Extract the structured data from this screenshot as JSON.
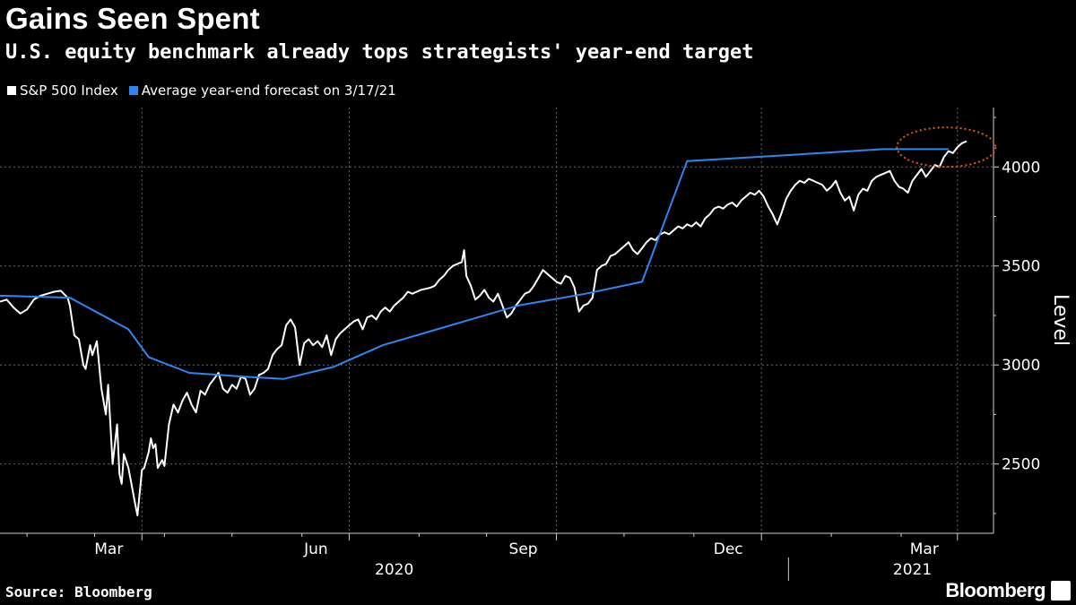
{
  "chart_data": {
    "type": "line",
    "title": "Gains Seen Spent",
    "subtitle": "U.S. equity benchmark already tops strategists' year-end target",
    "ylabel": "Level",
    "xlabel": "",
    "ylim": [
      2150,
      4300
    ],
    "yticks": [
      2500,
      3000,
      3500,
      4000
    ],
    "x_domain_days": [
      0,
      441
    ],
    "x_month_ticks": [
      {
        "day": 63,
        "label": "Mar"
      },
      {
        "day": 155,
        "label": "Jun"
      },
      {
        "day": 247,
        "label": "Sep"
      },
      {
        "day": 338,
        "label": "Dec"
      },
      {
        "day": 425,
        "label": "Mar"
      }
    ],
    "x_minor_ticks": [
      12,
      42,
      73,
      103,
      134,
      186,
      216,
      277,
      308,
      369,
      400
    ],
    "year_labels": [
      {
        "day": 175,
        "label": "2020"
      },
      {
        "day": 405,
        "label": "2021"
      }
    ],
    "year_divider_day": 350,
    "series": [
      {
        "name": "S&P 500 Index",
        "color": "#ffffff",
        "values_by_day": [
          [
            0,
            3320
          ],
          [
            3,
            3330
          ],
          [
            6,
            3290
          ],
          [
            9,
            3260
          ],
          [
            12,
            3280
          ],
          [
            15,
            3330
          ],
          [
            18,
            3350
          ],
          [
            21,
            3360
          ],
          [
            24,
            3370
          ],
          [
            27,
            3375
          ],
          [
            30,
            3340
          ],
          [
            31,
            3300
          ],
          [
            33,
            3150
          ],
          [
            35,
            3130
          ],
          [
            37,
            3000
          ],
          [
            38,
            2980
          ],
          [
            40,
            3100
          ],
          [
            41,
            3050
          ],
          [
            43,
            3120
          ],
          [
            45,
            2880
          ],
          [
            47,
            2750
          ],
          [
            48,
            2900
          ],
          [
            50,
            2500
          ],
          [
            51,
            2600
          ],
          [
            52,
            2700
          ],
          [
            53,
            2450
          ],
          [
            54,
            2400
          ],
          [
            55,
            2550
          ],
          [
            57,
            2480
          ],
          [
            58,
            2420
          ],
          [
            60,
            2300
          ],
          [
            61,
            2240
          ],
          [
            63,
            2470
          ],
          [
            64,
            2480
          ],
          [
            66,
            2560
          ],
          [
            67,
            2630
          ],
          [
            68,
            2580
          ],
          [
            69,
            2600
          ],
          [
            70,
            2480
          ],
          [
            72,
            2520
          ],
          [
            73,
            2490
          ],
          [
            75,
            2700
          ],
          [
            77,
            2800
          ],
          [
            79,
            2760
          ],
          [
            81,
            2820
          ],
          [
            83,
            2860
          ],
          [
            85,
            2800
          ],
          [
            87,
            2760
          ],
          [
            89,
            2870
          ],
          [
            91,
            2850
          ],
          [
            93,
            2900
          ],
          [
            95,
            2930
          ],
          [
            97,
            2960
          ],
          [
            99,
            2880
          ],
          [
            101,
            2860
          ],
          [
            103,
            2900
          ],
          [
            105,
            2880
          ],
          [
            107,
            2940
          ],
          [
            109,
            2930
          ],
          [
            111,
            2850
          ],
          [
            113,
            2880
          ],
          [
            115,
            2950
          ],
          [
            117,
            2960
          ],
          [
            119,
            2980
          ],
          [
            121,
            3050
          ],
          [
            123,
            3080
          ],
          [
            125,
            3100
          ],
          [
            127,
            3200
          ],
          [
            129,
            3230
          ],
          [
            131,
            3190
          ],
          [
            133,
            3000
          ],
          [
            135,
            3110
          ],
          [
            137,
            3130
          ],
          [
            139,
            3100
          ],
          [
            141,
            3120
          ],
          [
            143,
            3090
          ],
          [
            145,
            3150
          ],
          [
            147,
            3050
          ],
          [
            149,
            3130
          ],
          [
            151,
            3160
          ],
          [
            153,
            3180
          ],
          [
            155,
            3200
          ],
          [
            157,
            3220
          ],
          [
            159,
            3230
          ],
          [
            161,
            3180
          ],
          [
            163,
            3240
          ],
          [
            165,
            3250
          ],
          [
            167,
            3230
          ],
          [
            169,
            3270
          ],
          [
            171,
            3290
          ],
          [
            173,
            3270
          ],
          [
            175,
            3300
          ],
          [
            177,
            3320
          ],
          [
            179,
            3340
          ],
          [
            181,
            3370
          ],
          [
            183,
            3360
          ],
          [
            185,
            3370
          ],
          [
            187,
            3380
          ],
          [
            189,
            3385
          ],
          [
            191,
            3390
          ],
          [
            193,
            3400
          ],
          [
            195,
            3430
          ],
          [
            197,
            3450
          ],
          [
            199,
            3480
          ],
          [
            201,
            3500
          ],
          [
            203,
            3510
          ],
          [
            205,
            3520
          ],
          [
            206,
            3580
          ],
          [
            207,
            3450
          ],
          [
            209,
            3400
          ],
          [
            211,
            3330
          ],
          [
            213,
            3350
          ],
          [
            215,
            3380
          ],
          [
            217,
            3340
          ],
          [
            219,
            3320
          ],
          [
            221,
            3360
          ],
          [
            223,
            3300
          ],
          [
            225,
            3240
          ],
          [
            227,
            3260
          ],
          [
            229,
            3300
          ],
          [
            231,
            3330
          ],
          [
            233,
            3360
          ],
          [
            235,
            3370
          ],
          [
            237,
            3400
          ],
          [
            239,
            3440
          ],
          [
            241,
            3480
          ],
          [
            243,
            3460
          ],
          [
            245,
            3440
          ],
          [
            247,
            3420
          ],
          [
            249,
            3410
          ],
          [
            251,
            3450
          ],
          [
            253,
            3440
          ],
          [
            255,
            3390
          ],
          [
            257,
            3270
          ],
          [
            259,
            3300
          ],
          [
            261,
            3310
          ],
          [
            263,
            3340
          ],
          [
            265,
            3480
          ],
          [
            267,
            3500
          ],
          [
            269,
            3510
          ],
          [
            271,
            3550
          ],
          [
            273,
            3560
          ],
          [
            275,
            3580
          ],
          [
            277,
            3600
          ],
          [
            279,
            3620
          ],
          [
            281,
            3580
          ],
          [
            283,
            3560
          ],
          [
            285,
            3590
          ],
          [
            287,
            3620
          ],
          [
            289,
            3640
          ],
          [
            291,
            3630
          ],
          [
            293,
            3660
          ],
          [
            295,
            3670
          ],
          [
            297,
            3660
          ],
          [
            299,
            3680
          ],
          [
            301,
            3700
          ],
          [
            303,
            3690
          ],
          [
            305,
            3710
          ],
          [
            307,
            3700
          ],
          [
            309,
            3720
          ],
          [
            311,
            3700
          ],
          [
            313,
            3740
          ],
          [
            315,
            3760
          ],
          [
            317,
            3790
          ],
          [
            319,
            3800
          ],
          [
            321,
            3790
          ],
          [
            323,
            3810
          ],
          [
            325,
            3820
          ],
          [
            327,
            3800
          ],
          [
            329,
            3830
          ],
          [
            331,
            3850
          ],
          [
            333,
            3870
          ],
          [
            335,
            3860
          ],
          [
            337,
            3880
          ],
          [
            339,
            3850
          ],
          [
            341,
            3800
          ],
          [
            343,
            3760
          ],
          [
            345,
            3710
          ],
          [
            347,
            3770
          ],
          [
            349,
            3840
          ],
          [
            351,
            3880
          ],
          [
            353,
            3910
          ],
          [
            355,
            3930
          ],
          [
            357,
            3920
          ],
          [
            359,
            3940
          ],
          [
            361,
            3930
          ],
          [
            363,
            3920
          ],
          [
            365,
            3910
          ],
          [
            367,
            3880
          ],
          [
            369,
            3900
          ],
          [
            371,
            3930
          ],
          [
            373,
            3870
          ],
          [
            375,
            3830
          ],
          [
            377,
            3850
          ],
          [
            379,
            3780
          ],
          [
            381,
            3860
          ],
          [
            383,
            3890
          ],
          [
            385,
            3880
          ],
          [
            387,
            3930
          ],
          [
            389,
            3950
          ],
          [
            391,
            3960
          ],
          [
            393,
            3970
          ],
          [
            395,
            3980
          ],
          [
            397,
            3930
          ],
          [
            399,
            3900
          ],
          [
            401,
            3890
          ],
          [
            403,
            3870
          ],
          [
            405,
            3930
          ],
          [
            407,
            3960
          ],
          [
            409,
            3990
          ],
          [
            411,
            3950
          ],
          [
            413,
            3980
          ],
          [
            415,
            4010
          ],
          [
            417,
            4000
          ],
          [
            419,
            4050
          ],
          [
            421,
            4080
          ],
          [
            423,
            4070
          ],
          [
            425,
            4100
          ],
          [
            427,
            4120
          ],
          [
            429,
            4130
          ]
        ]
      },
      {
        "name": "Average year-end forecast on 3/17/21",
        "color": "#2e86f0",
        "values_by_day": [
          [
            0,
            3350
          ],
          [
            31,
            3340
          ],
          [
            57,
            3180
          ],
          [
            66,
            3040
          ],
          [
            84,
            2960
          ],
          [
            110,
            2940
          ],
          [
            126,
            2930
          ],
          [
            148,
            2990
          ],
          [
            170,
            3100
          ],
          [
            200,
            3200
          ],
          [
            230,
            3300
          ],
          [
            260,
            3360
          ],
          [
            285,
            3420
          ],
          [
            305,
            4030
          ],
          [
            350,
            4060
          ],
          [
            392,
            4090
          ],
          [
            421,
            4090
          ]
        ]
      }
    ],
    "annotations": [
      {
        "type": "dotted-ellipse",
        "color": "#e8541e",
        "center_day": 420,
        "center_value": 4100
      }
    ]
  },
  "legend": {
    "items": [
      {
        "label": "S&P 500 Index",
        "color": "#ffffff"
      },
      {
        "label": "Average year-end forecast on 3/17/21",
        "color": "#2e86f0"
      }
    ]
  },
  "source": "Source: Bloomberg",
  "brand": "Bloomberg"
}
